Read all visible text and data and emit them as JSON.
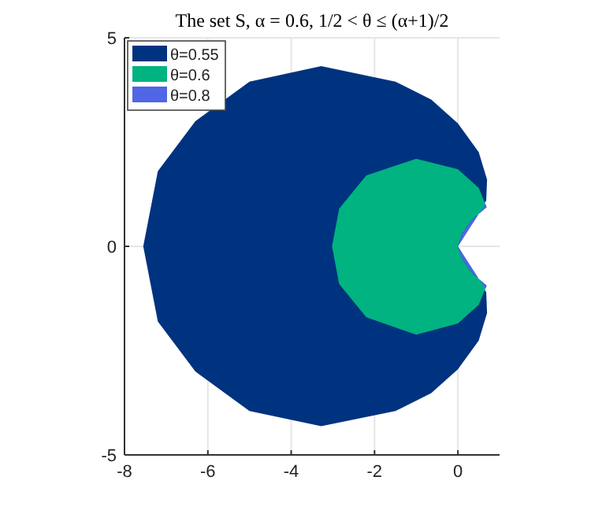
{
  "chart_data": {
    "type": "area",
    "title": "The set S, α = 0.6, 1/2 < θ ≤ (α+1)/2",
    "xlim": [
      -8,
      1
    ],
    "ylim": [
      -5,
      5
    ],
    "xticks": [
      -8,
      -6,
      -4,
      -2,
      0
    ],
    "yticks": [
      -5,
      0,
      5
    ],
    "grid": true,
    "legend": "top left",
    "series": [
      {
        "name": "θ=0.55",
        "color": "#00337f",
        "x": [
          -3.28,
          -1.5,
          -0.64,
          0.0,
          0.5,
          0.7,
          0.68,
          0,
          0.68,
          0.7,
          0.5,
          0,
          -0.64,
          -1.5,
          -3.28,
          -5.0,
          -6.3,
          -7.2,
          -7.55,
          -7.2,
          -6.3,
          -5.0
        ],
        "values": [
          4.32,
          3.95,
          3.52,
          2.95,
          2.26,
          1.6,
          1.1,
          0,
          -1.1,
          -1.6,
          -2.26,
          -2.95,
          -3.52,
          -3.95,
          -4.31,
          -3.95,
          -3.0,
          -1.8,
          0,
          1.8,
          3.0,
          3.95
        ]
      },
      {
        "name": "θ=0.6",
        "color": "#00b380",
        "x": [
          -1,
          0,
          0.5,
          0.69,
          0.35,
          0.1,
          0,
          0.1,
          0.35,
          0.69,
          0.5,
          0,
          -1,
          -2.2,
          -2.85,
          -3.02,
          -2.85,
          -2.2
        ],
        "values": [
          2.1,
          1.85,
          1.4,
          0.94,
          0.65,
          0.3,
          0,
          -0.3,
          -0.65,
          -0.94,
          -1.4,
          -1.85,
          -2.12,
          -1.7,
          -0.9,
          0,
          0.9,
          1.7
        ]
      },
      {
        "name": "θ=0.8",
        "color": "#4f66e6",
        "x": [
          0,
          0.1,
          0.35,
          0.69,
          0.66,
          0,
          0.66,
          0.69,
          0.35,
          0.1
        ],
        "values": [
          0,
          0.3,
          0.65,
          0.94,
          1.02,
          0,
          -1.02,
          -0.94,
          -0.65,
          -0.3
        ]
      }
    ]
  }
}
